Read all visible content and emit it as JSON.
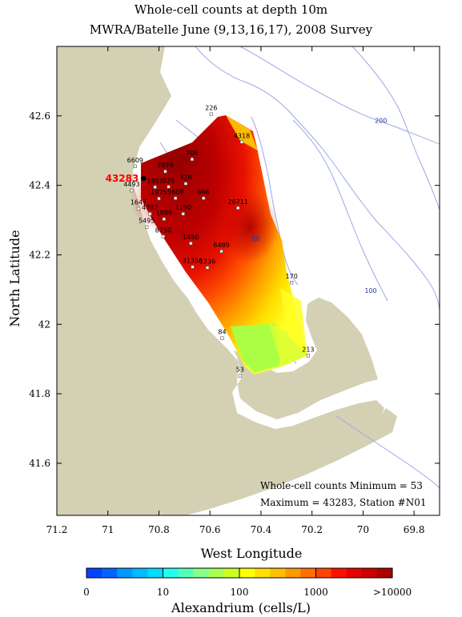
{
  "title_line1": "Whole-cell counts at  depth 10m",
  "title_line2": "MWRA/Batelle June (9,13,16,17), 2008 Survey",
  "xlabel": "West Longitude",
  "ylabel": "North Latitude",
  "x_ticks": [
    "71.2",
    "71",
    "70.8",
    "70.6",
    "70.4",
    "70.2",
    "70",
    "69.8"
  ],
  "y_ticks": [
    "42.6",
    "42.4",
    "42.2",
    "42",
    "41.8",
    "41.6"
  ],
  "map_extent": {
    "lon_west": 71.2,
    "lon_east": 69.7,
    "lat_south": 41.45,
    "lat_north": 42.8
  },
  "contour_labels": [
    {
      "text": "200",
      "lon": 69.93,
      "lat": 42.58
    },
    {
      "text": "100",
      "lon": 69.97,
      "lat": 42.09
    },
    {
      "text": "60",
      "lon": 70.42,
      "lat": 42.24
    }
  ],
  "stations": [
    {
      "label": "226",
      "lon": 70.595,
      "lat": 42.605
    },
    {
      "label": "4318",
      "lon": 70.475,
      "lat": 42.525
    },
    {
      "label": "706",
      "lon": 70.67,
      "lat": 42.475
    },
    {
      "label": "6609",
      "lon": 70.893,
      "lat": 42.455
    },
    {
      "label": "7879",
      "lon": 70.775,
      "lat": 42.44
    },
    {
      "label": "43283",
      "lon": 70.86,
      "lat": 42.42,
      "highlight": true
    },
    {
      "label": "328",
      "lon": 70.695,
      "lat": 42.405
    },
    {
      "label": "1853",
      "lon": 70.815,
      "lat": 42.395
    },
    {
      "label": "926",
      "lon": 70.762,
      "lat": 42.396
    },
    {
      "label": "4493",
      "lon": 70.907,
      "lat": 42.385
    },
    {
      "label": "1975",
      "lon": 70.8,
      "lat": 42.362
    },
    {
      "label": "5609",
      "lon": 70.735,
      "lat": 42.363
    },
    {
      "label": "666",
      "lon": 70.625,
      "lat": 42.363
    },
    {
      "label": "26711",
      "lon": 70.49,
      "lat": 42.335
    },
    {
      "label": "1647",
      "lon": 70.88,
      "lat": 42.333
    },
    {
      "label": "4787",
      "lon": 70.835,
      "lat": 42.318
    },
    {
      "label": "1190",
      "lon": 70.705,
      "lat": 42.318
    },
    {
      "label": "1886",
      "lon": 70.78,
      "lat": 42.303
    },
    {
      "label": "5495",
      "lon": 70.848,
      "lat": 42.28
    },
    {
      "label": "8750",
      "lon": 70.783,
      "lat": 42.253
    },
    {
      "label": "1450",
      "lon": 70.675,
      "lat": 42.233
    },
    {
      "label": "6489",
      "lon": 70.555,
      "lat": 42.21
    },
    {
      "label": "31356",
      "lon": 70.668,
      "lat": 42.165
    },
    {
      "label": "1236",
      "lon": 70.61,
      "lat": 42.163
    },
    {
      "label": "170",
      "lon": 70.28,
      "lat": 42.12
    },
    {
      "label": "84",
      "lon": 70.552,
      "lat": 41.96
    },
    {
      "label": "213",
      "lon": 70.215,
      "lat": 41.91
    },
    {
      "label": "53",
      "lon": 70.482,
      "lat": 41.852
    }
  ],
  "annotation_line1": "Whole-cell counts Minimum = 53",
  "annotation_line2": "Maximum = 43283, Station #N01",
  "colorbar": {
    "label": "Alexandrium (cells/L)",
    "ticks": [
      "0",
      "10",
      "100",
      "1000",
      ">10000"
    ],
    "colors": [
      "#0044ff",
      "#0066ff",
      "#0099ff",
      "#00bbff",
      "#00ddff",
      "#22ffee",
      "#55ffbb",
      "#88ff88",
      "#aaff55",
      "#ccff22",
      "#ffff00",
      "#ffe000",
      "#ffc000",
      "#ff9900",
      "#ff7000",
      "#ff4400",
      "#ff1100",
      "#e80000",
      "#cc0000",
      "#aa0000"
    ]
  },
  "colors": {
    "land": "#d4d0b4",
    "contour": "#9aa8e6",
    "max_station": "#ff0000"
  }
}
